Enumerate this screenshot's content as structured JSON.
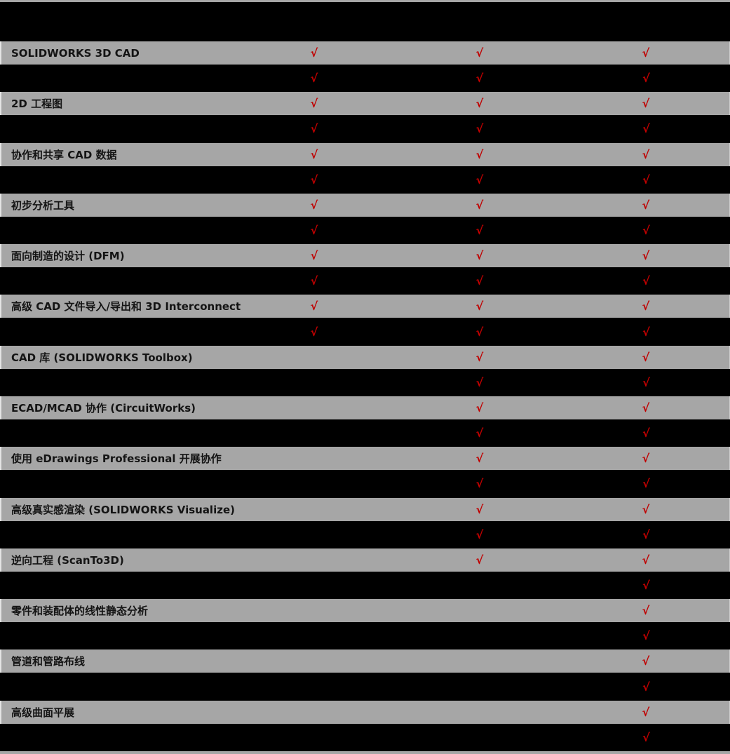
{
  "page": {
    "background_color": "#000000",
    "row_color": "#a6a6a6",
    "check_color": "#c00000",
    "check_symbol": "√"
  },
  "table": {
    "column_count": 3,
    "rows": [
      {
        "label": "SOLIDWORKS 3D CAD",
        "checks": [
          true,
          true,
          true
        ],
        "alt_checks": [
          true,
          true,
          true
        ]
      },
      {
        "label": "2D 工程图",
        "checks": [
          true,
          true,
          true
        ],
        "alt_checks": [
          true,
          true,
          true
        ]
      },
      {
        "label": "协作和共享 CAD 数据",
        "checks": [
          true,
          true,
          true
        ],
        "alt_checks": [
          true,
          true,
          true
        ]
      },
      {
        "label": "初步分析工具",
        "checks": [
          true,
          true,
          true
        ],
        "alt_checks": [
          true,
          true,
          true
        ]
      },
      {
        "label": "面向制造的设计 (DFM)",
        "checks": [
          true,
          true,
          true
        ],
        "alt_checks": [
          true,
          true,
          true
        ]
      },
      {
        "label": "高级 CAD 文件导入/导出和 3D Interconnect",
        "checks": [
          true,
          true,
          true
        ],
        "alt_checks": [
          true,
          true,
          true
        ]
      },
      {
        "label": "CAD 库 (SOLIDWORKS Toolbox)",
        "checks": [
          false,
          true,
          true
        ],
        "alt_checks": [
          false,
          true,
          true
        ]
      },
      {
        "label": "ECAD/MCAD 协作 (CircuitWorks)",
        "checks": [
          false,
          true,
          true
        ],
        "alt_checks": [
          false,
          true,
          true
        ]
      },
      {
        "label": "使用 eDrawings Professional 开展协作",
        "checks": [
          false,
          true,
          true
        ],
        "alt_checks": [
          false,
          true,
          true
        ]
      },
      {
        "label": "高级真实感渲染 (SOLIDWORKS Visualize)",
        "checks": [
          false,
          true,
          true
        ],
        "alt_checks": [
          false,
          true,
          true
        ]
      },
      {
        "label": "逆向工程 (ScanTo3D)",
        "checks": [
          false,
          true,
          true
        ],
        "alt_checks": [
          false,
          false,
          true
        ]
      },
      {
        "label": "零件和装配体的线性静态分析",
        "checks": [
          false,
          false,
          true
        ],
        "alt_checks": [
          false,
          false,
          true
        ]
      },
      {
        "label": "管道和管路布线",
        "checks": [
          false,
          false,
          true
        ],
        "alt_checks": [
          false,
          false,
          true
        ]
      },
      {
        "label": "高级曲面平展",
        "checks": [
          false,
          false,
          true
        ],
        "alt_checks": [
          false,
          false,
          true
        ]
      }
    ]
  }
}
